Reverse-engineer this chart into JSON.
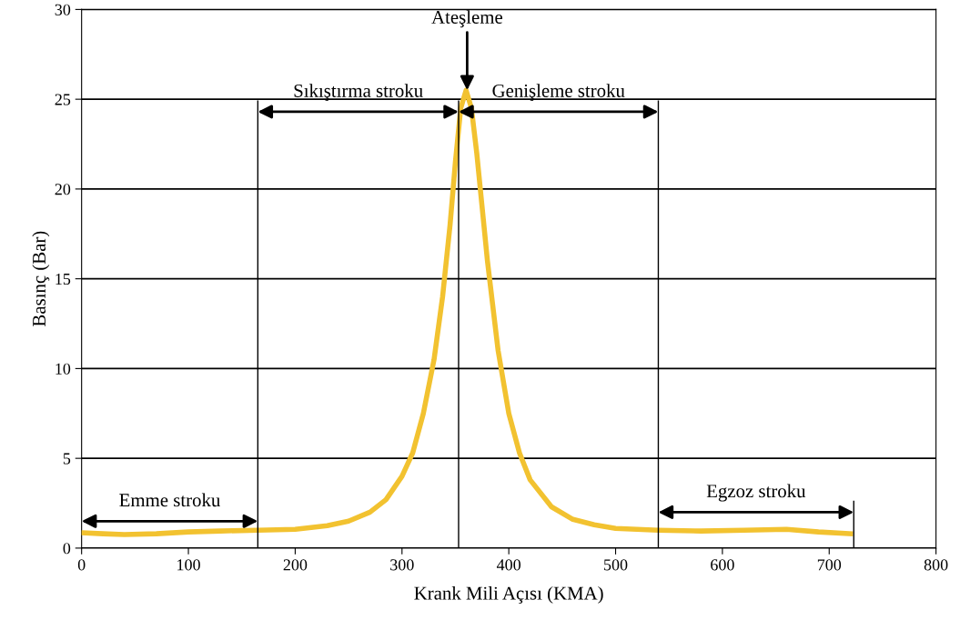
{
  "chart_data": {
    "type": "line",
    "xlabel": "Krank Mili Açısı (KMA)",
    "ylabel": "Basınç (Bar)",
    "x": [
      0,
      20,
      40,
      70,
      100,
      130,
      165,
      200,
      230,
      250,
      270,
      285,
      300,
      310,
      320,
      330,
      338,
      345,
      350,
      355,
      360,
      365,
      370,
      375,
      380,
      390,
      400,
      410,
      420,
      440,
      460,
      480,
      500,
      540,
      580,
      620,
      660,
      690,
      720
    ],
    "series": [
      {
        "color": "#f2c230",
        "values": [
          0.85,
          0.8,
          0.75,
          0.8,
          0.9,
          0.95,
          1.0,
          1.05,
          1.25,
          1.5,
          2.0,
          2.7,
          4.0,
          5.3,
          7.5,
          10.5,
          14,
          18,
          21.5,
          24.5,
          25.5,
          24.5,
          22,
          19,
          16,
          11,
          7.5,
          5.3,
          3.8,
          2.3,
          1.6,
          1.3,
          1.1,
          1.0,
          0.95,
          1.0,
          1.05,
          0.9,
          0.8
        ]
      }
    ],
    "xlim": [
      0,
      800
    ],
    "ylim": [
      0,
      30
    ],
    "xticks": [
      0,
      100,
      200,
      300,
      400,
      500,
      600,
      700,
      800
    ],
    "yticks": [
      0,
      5,
      10,
      15,
      20,
      25,
      30
    ],
    "grid": "y",
    "marker": "none",
    "line_style": "solid",
    "ref_lines": [
      {
        "axis": "x",
        "value": 165,
        "color": "#000000"
      },
      {
        "axis": "x",
        "value": 353,
        "color": "#000000"
      },
      {
        "axis": "x",
        "value": 540,
        "color": "#000000"
      },
      {
        "axis": "x",
        "value": 723,
        "color": "#000000"
      }
    ],
    "annotations": [
      "Emme stroku",
      "Sıkıştırma stroku",
      "Genişleme stroku",
      "Egzoz stroku",
      {
        "text": "Ateşleme",
        "x": 361,
        "y": 25.5
      }
    ]
  }
}
